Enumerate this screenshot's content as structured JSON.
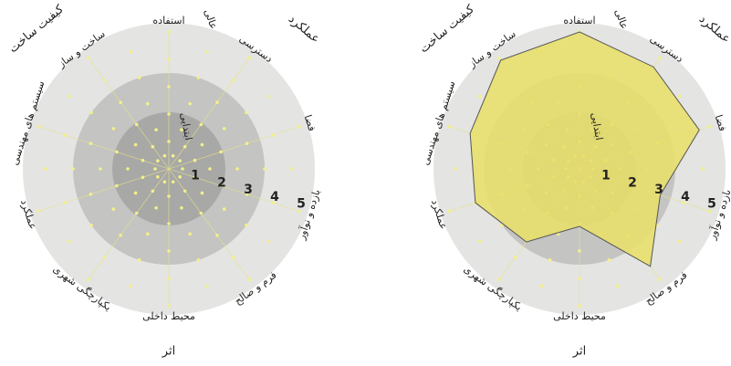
{
  "chart_data": [
    {
      "type": "radar",
      "categories": [
        "استفاده",
        "دسترسی",
        "فضا",
        "بازده و نوآور",
        "فرم و صالح",
        "محیط داخلی",
        "یکپارچگی شهری",
        "عملکرد",
        "سیستم های مهندسی",
        "ساخت و ساز"
      ],
      "ylim": [
        0,
        5
      ],
      "yticks": [
        1,
        2,
        3,
        4,
        5
      ],
      "scale_labels": [
        "ابتدایی",
        "عالی"
      ],
      "groups": [
        "کیفیت ساخت",
        "عملکرد",
        "اثر"
      ]
    },
    {
      "type": "radar",
      "categories": [
        "استفاده",
        "دسترسی",
        "فضا",
        "بازده و نوآور",
        "فرم و صالح",
        "محیط داخلی",
        "یکپارچگی شهری",
        "عملکرد",
        "سیستم های مهندسی",
        "ساخت و ساز"
      ],
      "ylim": [
        0,
        5
      ],
      "yticks": [
        1,
        2,
        3,
        4,
        5
      ],
      "scale_labels": [
        "ابتدایی",
        "عالی"
      ],
      "groups": [
        "کیفیت ساخت",
        "عملکرد",
        "اثر"
      ],
      "series": [
        {
          "color": "#e8df6a",
          "values": [
            5,
            4.6,
            4.6,
            3.1,
            4.4,
            2.1,
            3.3,
            4,
            4.2,
            4.9
          ]
        }
      ]
    }
  ]
}
